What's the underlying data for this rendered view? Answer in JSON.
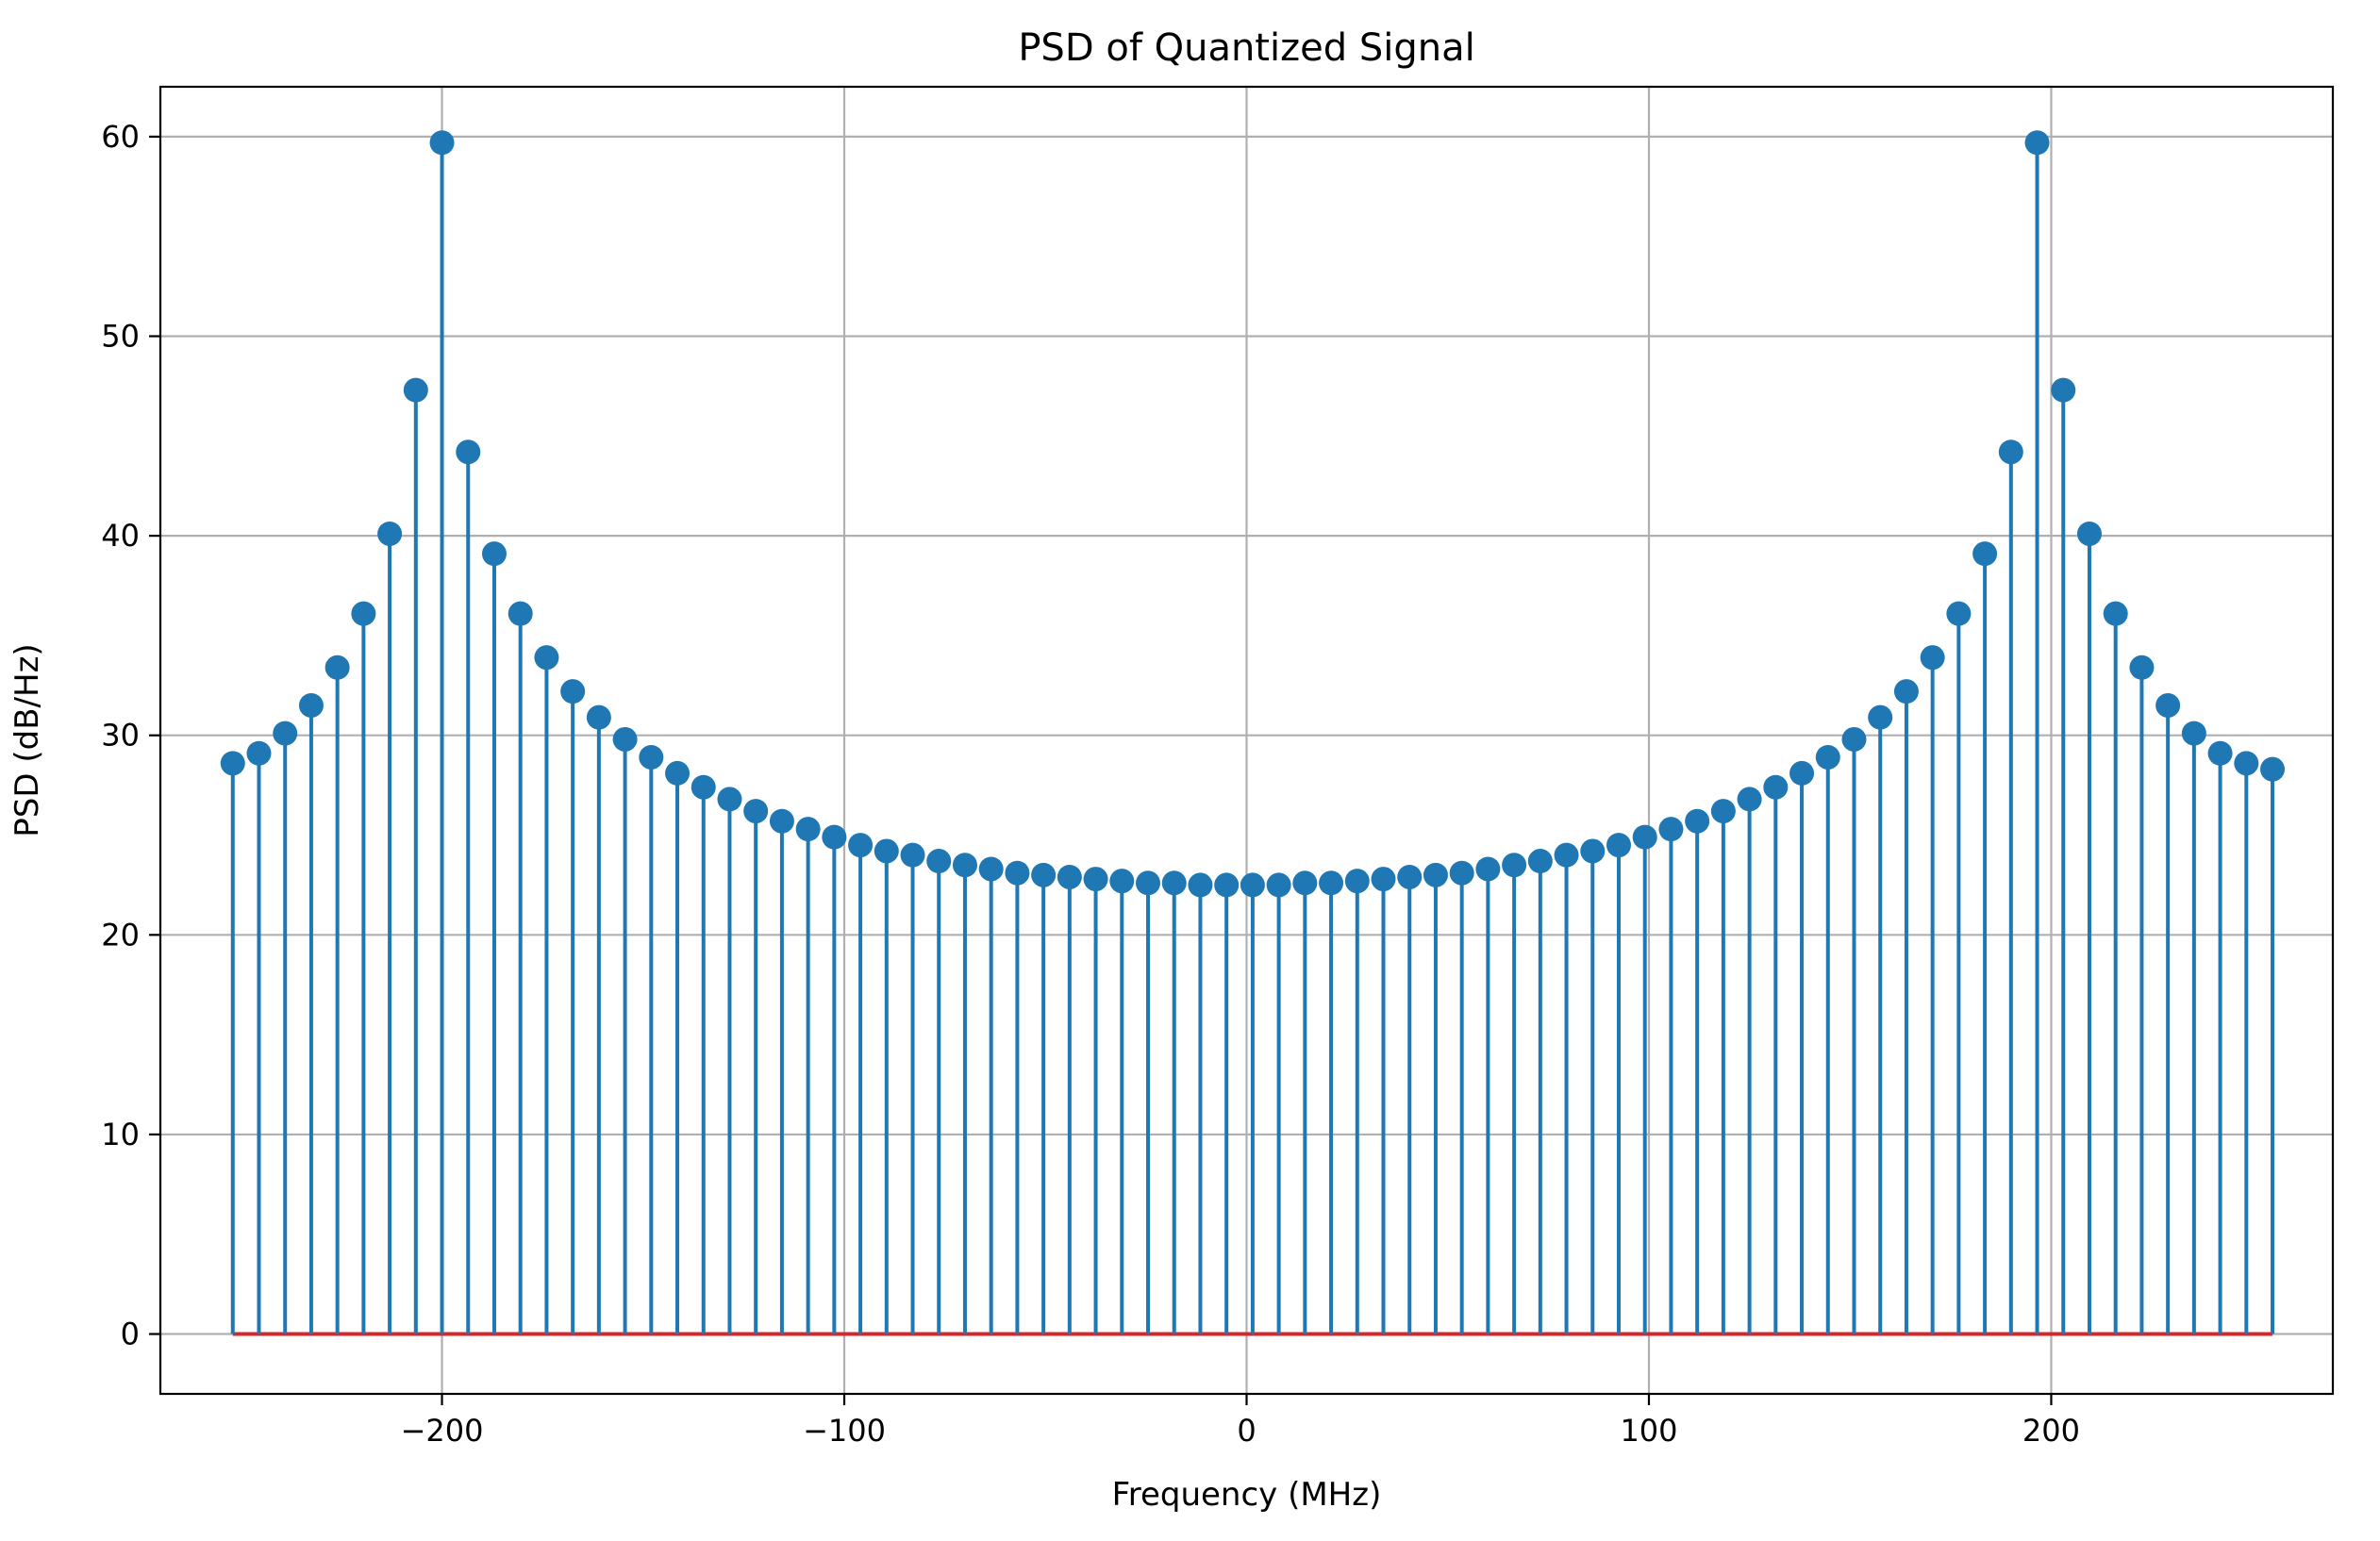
{
  "chart_data": {
    "type": "stem",
    "title": "PSD of Quantized Signal",
    "xlabel": "Frequency (MHz)",
    "ylabel": "PSD (dB/Hz)",
    "xlim": [
      -270,
      270
    ],
    "ylim": [
      -3,
      62.5
    ],
    "xticks": [
      -200,
      -100,
      0,
      100,
      200
    ],
    "xtick_labels": [
      "−200",
      "−100",
      "0",
      "100",
      "200"
    ],
    "yticks": [
      0,
      10,
      20,
      30,
      40,
      50,
      60
    ],
    "ytick_labels": [
      "0",
      "10",
      "20",
      "30",
      "40",
      "50",
      "60"
    ],
    "grid": true,
    "baseline_value": 0,
    "colors": {
      "stem": "#1f77b4",
      "marker": "#1f77b4",
      "baseline": "#d62728"
    },
    "series": [
      {
        "x": [
          -252,
          -245.5,
          -239,
          -232.5,
          -226,
          -219.5,
          -213,
          -206.5,
          -200,
          -193.5,
          -187,
          -180.5,
          -174,
          -167.5,
          -161,
          -154.5,
          -148,
          -141.5,
          -135,
          -128.5,
          -122,
          -115.5,
          -109,
          -102.5,
          -96,
          -89.5,
          -83,
          -76.5,
          -70,
          -63.5,
          -57,
          -50.5,
          -44,
          -37.5,
          -31,
          -24.5,
          -18,
          -11.5,
          -5,
          1.5,
          8,
          14.5,
          21,
          27.5,
          34,
          40.5,
          47,
          53.5,
          60,
          66.5,
          73,
          79.5,
          86,
          92.5,
          99,
          105.5,
          112,
          118.5,
          125,
          131.5,
          138,
          144.5,
          151,
          157.5,
          164,
          170.5,
          177,
          183.5,
          190,
          196.5,
          203,
          209.5,
          216,
          222.5,
          229,
          235.5,
          242,
          248.5,
          255
        ],
        "values": [
          28.6,
          29.1,
          30.1,
          31.5,
          33.4,
          36.1,
          40.1,
          47.3,
          59.7,
          44.2,
          39.1,
          36.1,
          33.9,
          32.2,
          30.9,
          29.8,
          28.9,
          28.1,
          27.4,
          26.8,
          26.2,
          25.7,
          25.3,
          24.9,
          24.5,
          24.2,
          24.0,
          23.7,
          23.5,
          23.3,
          23.1,
          23.0,
          22.9,
          22.8,
          22.7,
          22.6,
          22.6,
          22.5,
          22.5,
          22.5,
          22.5,
          22.6,
          22.6,
          22.7,
          22.8,
          22.9,
          23.0,
          23.1,
          23.3,
          23.5,
          23.7,
          24.0,
          24.2,
          24.5,
          24.9,
          25.3,
          25.7,
          26.2,
          26.8,
          27.4,
          28.1,
          28.9,
          29.8,
          30.9,
          32.2,
          33.9,
          36.1,
          39.1,
          44.2,
          59.7,
          47.3,
          40.1,
          36.1,
          33.4,
          31.5,
          30.1,
          29.1,
          28.6,
          28.3
        ]
      }
    ]
  }
}
